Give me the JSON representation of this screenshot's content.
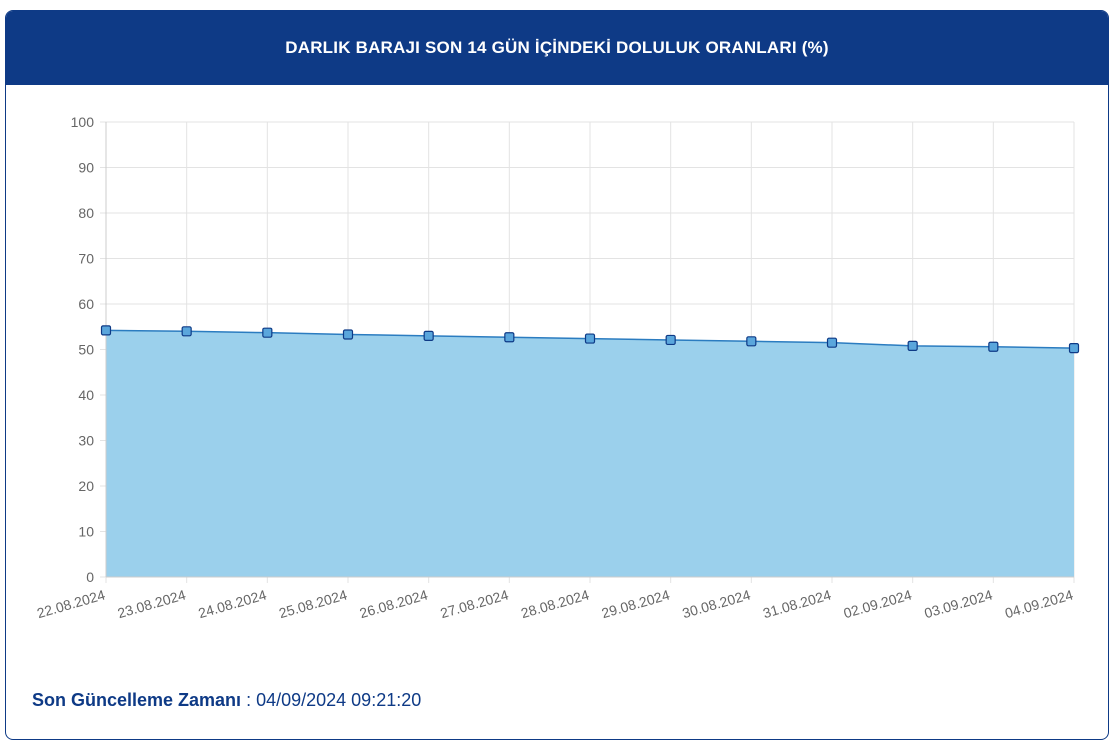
{
  "header": {
    "title": "DARLIK BARAJI SON 14 GÜN İÇİNDEKİ DOLULUK ORANLARI (%)"
  },
  "footer": {
    "label": "Son Güncelleme Zamanı",
    "separator": " : ",
    "value": "04/09/2024 09:21:20"
  },
  "colors": {
    "header_bg": "#0e3a86",
    "area_fill": "#9bd0ec",
    "line": "#2b7cc0",
    "marker_fill": "#5aa6dc",
    "marker_stroke": "#0e3a86",
    "grid": "#e3e3e3"
  },
  "chart_data": {
    "type": "area",
    "title": "DARLIK BARAJI SON 14 GÜN İÇİNDEKİ DOLULUK ORANLARI (%)",
    "xlabel": "",
    "ylabel": "",
    "ylim": [
      0,
      100
    ],
    "yticks": [
      0,
      10,
      20,
      30,
      40,
      50,
      60,
      70,
      80,
      90,
      100
    ],
    "grid": true,
    "categories": [
      "22.08.2024",
      "23.08.2024",
      "24.08.2024",
      "25.08.2024",
      "26.08.2024",
      "27.08.2024",
      "28.08.2024",
      "29.08.2024",
      "30.08.2024",
      "31.08.2024",
      "02.09.2024",
      "03.09.2024",
      "04.09.2024"
    ],
    "series": [
      {
        "values": [
          54.2,
          54.0,
          53.7,
          53.3,
          53.0,
          52.7,
          52.4,
          52.1,
          51.8,
          51.5,
          50.8,
          50.6,
          50.3
        ]
      }
    ]
  }
}
